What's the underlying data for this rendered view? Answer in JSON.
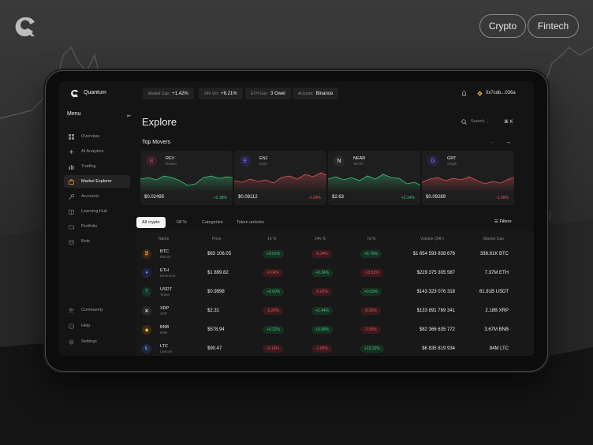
{
  "brand": {
    "logo": "quantum-logo"
  },
  "tags": {
    "crypto": "Crypto",
    "fintech": "Fintech"
  },
  "app": {
    "name": "Quantum",
    "stats": [
      {
        "label": "Market Cap:",
        "value": "+1.42%"
      },
      {
        "label": "24h Vol:",
        "value": "+6.21%"
      },
      {
        "label": "ETH Gas:",
        "value": "3 Gwei"
      },
      {
        "label": "Account:",
        "value": "Binance"
      }
    ],
    "account_address": "0x7cdb...036a"
  },
  "sidebar": {
    "title": "Menu",
    "items": [
      {
        "label": "Overview",
        "icon": "grid-icon"
      },
      {
        "label": "AI Analytics",
        "icon": "sparkle-icon"
      },
      {
        "label": "Trading",
        "icon": "chart-icon"
      },
      {
        "label": "Market Explorer",
        "icon": "briefcase-icon",
        "active": true
      },
      {
        "label": "Accounts",
        "icon": "key-icon"
      },
      {
        "label": "Learning Hub",
        "icon": "book-icon"
      },
      {
        "label": "Portfolio",
        "icon": "folder-icon"
      },
      {
        "label": "Bots",
        "icon": "bot-icon"
      }
    ],
    "bottom": [
      {
        "label": "Community",
        "icon": "users-icon"
      },
      {
        "label": "Help",
        "icon": "help-icon"
      },
      {
        "label": "Settings",
        "icon": "gear-icon"
      }
    ]
  },
  "main": {
    "title": "Explore",
    "search_placeholder": "Search...",
    "shortcut": "⌘ K",
    "movers_title": "Top Movers",
    "movers": [
      {
        "symbol": "REV",
        "name": "Revain",
        "price": "$0.02495",
        "change": "+2.38%",
        "up": true,
        "color": "#c0486a",
        "glyph": "R"
      },
      {
        "symbol": "ENJ",
        "name": "Enjin",
        "price": "$0.09112",
        "change": "-3.24%",
        "up": false,
        "color": "#6d6ad8",
        "glyph": "E"
      },
      {
        "symbol": "NEAR",
        "name": "NEAR",
        "price": "$2.63",
        "change": "+2.14%",
        "up": true,
        "color": "#e8e8e8",
        "glyph": "N"
      },
      {
        "symbol": "GRT",
        "name": "Graph",
        "price": "$0.09289",
        "change": "-1.68%",
        "up": false,
        "color": "#7d5fd6",
        "glyph": "G"
      }
    ],
    "tabs": [
      "All crypto",
      "NFTs",
      "Categories",
      "Token unlocks"
    ],
    "filters_label": "Filters",
    "columns": [
      "Name",
      "Price",
      "1h %",
      "24h %",
      "7d %",
      "Volume (24h)",
      "Market Cap"
    ],
    "rows": [
      {
        "symbol": "BTC",
        "name": "Bitcoin",
        "price": "$83 106.05",
        "h1": "+0.01%",
        "h24": "-0.34%",
        "d7": "+6.76%",
        "volume": "$1 654 593 838 676",
        "cap": "336.81K BTC",
        "color": "#f7931a",
        "glyph": "₿"
      },
      {
        "symbol": "ETH",
        "name": "Ethereum",
        "price": "$1 899.82",
        "h1": "-0.04%",
        "h24": "+0.34%",
        "d7": "-13.53%",
        "volume": "$229 375 305 587",
        "cap": "7.37M ETH",
        "color": "#627eea",
        "glyph": "♦"
      },
      {
        "symbol": "USDT",
        "name": "Tether",
        "price": "$0.9998",
        "h1": "+0.00%",
        "h24": "-0.02%",
        "d7": "+0.03%",
        "volume": "$143 323 076 318",
        "cap": "61.91B USDT",
        "color": "#26a17b",
        "glyph": "T"
      },
      {
        "symbol": "XRP",
        "name": "XRP",
        "price": "$2.31",
        "h1": "-0.20%",
        "h24": "+1.44%",
        "d7": "-8.56%",
        "volume": "$133 891 769 341",
        "cap": "2.18B XRP",
        "color": "#dcdcdc",
        "glyph": "✕"
      },
      {
        "symbol": "BNB",
        "name": "BNB",
        "price": "$578.94",
        "h1": "+0.22%",
        "h24": "+0.08%",
        "d7": "-3.55%",
        "volume": "$82 366 635 772",
        "cap": "3.67M BNB",
        "color": "#f3ba2f",
        "glyph": "◆"
      },
      {
        "symbol": "LTC",
        "name": "Litecoin",
        "price": "$90.47",
        "h1": "-0.14%",
        "h24": "-1.05%",
        "d7": "+13.32%",
        "volume": "$6 835 819 934",
        "cap": "84M LTC",
        "color": "#345d9d",
        "glyph": "Ł"
      }
    ]
  },
  "colors": {
    "positive": "#3ec47a",
    "negative": "#e5545a",
    "background": "#141414"
  }
}
